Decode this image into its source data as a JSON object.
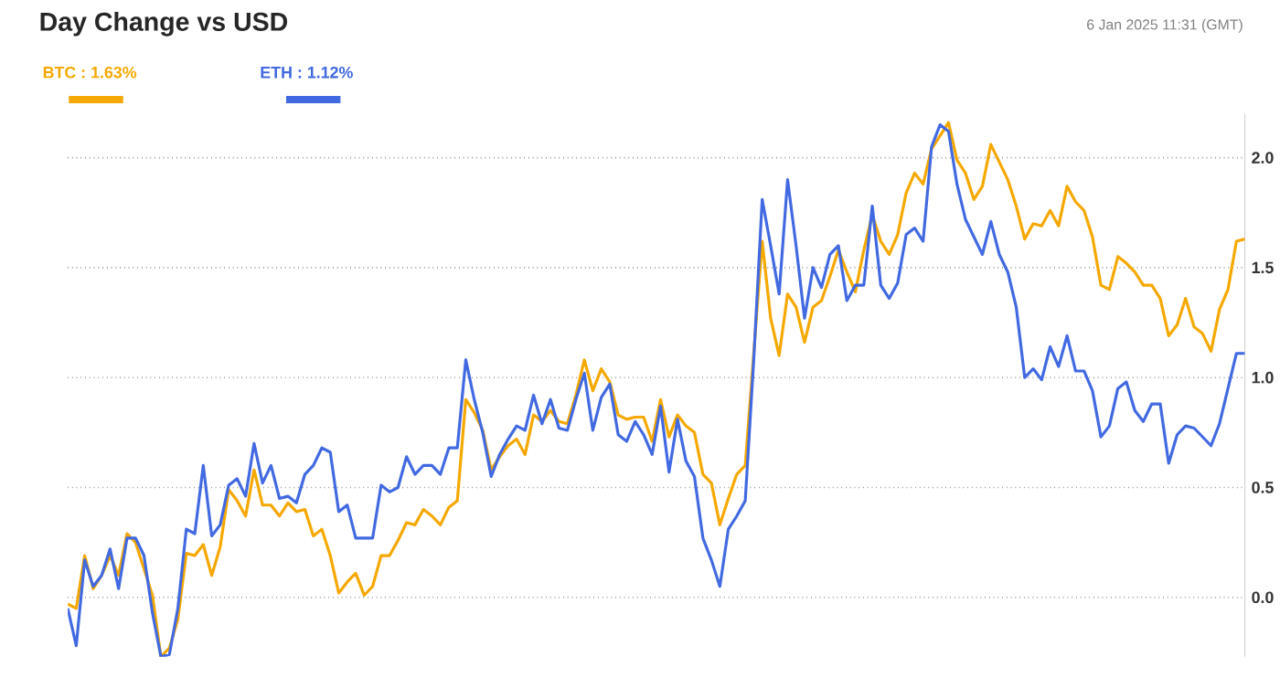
{
  "chart_data": {
    "type": "line",
    "title": "Day Change vs USD",
    "annotations": [
      "6 Jan 2025 11:31 (GMT)"
    ],
    "categories": [
      null,
      null,
      null,
      null,
      null,
      null,
      null,
      null,
      null,
      null,
      null,
      null,
      null,
      null,
      null,
      null,
      null,
      null,
      null,
      null,
      null,
      null,
      null,
      null,
      null,
      null,
      null,
      null,
      null,
      null,
      null,
      null,
      null,
      null,
      null,
      null,
      null,
      null,
      null,
      null,
      null,
      null,
      null,
      null,
      null,
      null,
      null,
      null,
      null,
      null,
      null,
      null,
      null,
      null,
      null,
      null,
      null,
      null,
      null,
      null,
      null,
      null,
      null,
      null,
      null,
      null,
      null,
      null,
      null,
      null,
      null,
      null,
      null,
      null,
      null,
      null,
      null,
      null,
      null,
      null,
      null,
      null,
      null,
      null,
      null,
      null,
      null,
      null,
      null,
      null,
      null,
      null,
      null,
      null,
      null,
      null,
      null,
      null,
      null,
      null,
      null,
      null,
      null,
      null,
      null,
      null,
      null,
      null,
      null,
      null,
      null,
      null,
      null,
      null,
      null,
      null,
      null,
      null,
      null,
      null,
      null,
      null,
      null,
      null,
      null,
      null,
      null,
      null,
      null,
      null,
      null,
      null,
      null,
      null,
      null,
      null,
      null,
      null,
      null,
      null
    ],
    "ylim": [
      -0.27,
      2.2
    ],
    "yticks": [
      {
        "value": 0,
        "label": "0.0"
      },
      {
        "value": 0.5,
        "label": "0.5"
      },
      {
        "value": 1,
        "label": "1.0"
      },
      {
        "value": 1.5,
        "label": "1.5"
      },
      {
        "value": 2,
        "label": "2.0"
      }
    ],
    "grid": "y",
    "legend": "top left",
    "marker": "none",
    "line_style": "solid",
    "series": [
      {
        "name": "BTC : 1.63%",
        "color": "#f5a800",
        "values": [
          -0.03,
          -0.05,
          0.19,
          0.04,
          0.1,
          0.19,
          0.1,
          0.29,
          0.25,
          0.13,
          0.01,
          -0.27,
          -0.23,
          -0.1,
          0.2,
          0.19,
          0.24,
          0.1,
          0.23,
          0.49,
          0.44,
          0.37,
          0.58,
          0.42,
          0.42,
          0.37,
          0.43,
          0.39,
          0.4,
          0.28,
          0.31,
          0.19,
          0.02,
          0.07,
          0.11,
          0.01,
          0.05,
          0.19,
          0.19,
          0.26,
          0.34,
          0.33,
          0.4,
          0.37,
          0.33,
          0.41,
          0.44,
          0.9,
          0.84,
          0.76,
          0.58,
          0.64,
          0.69,
          0.72,
          0.65,
          0.83,
          0.8,
          0.85,
          0.8,
          0.79,
          0.92,
          1.08,
          0.94,
          1.04,
          0.98,
          0.83,
          0.81,
          0.82,
          0.82,
          0.71,
          0.9,
          0.73,
          0.83,
          0.78,
          0.75,
          0.56,
          0.52,
          0.33,
          0.45,
          0.56,
          0.6,
          1.11,
          1.62,
          1.27,
          1.1,
          1.38,
          1.32,
          1.16,
          1.32,
          1.35,
          1.46,
          1.58,
          1.48,
          1.39,
          1.58,
          1.74,
          1.62,
          1.56,
          1.65,
          1.84,
          1.93,
          1.88,
          2.04,
          2.1,
          2.16,
          1.99,
          1.93,
          1.81,
          1.87,
          2.06,
          1.98,
          1.9,
          1.78,
          1.63,
          1.7,
          1.69,
          1.76,
          1.69,
          1.87,
          1.8,
          1.76,
          1.64,
          1.42,
          1.4,
          1.55,
          1.52,
          1.48,
          1.42,
          1.42,
          1.36,
          1.19,
          1.24,
          1.36,
          1.23,
          1.2,
          1.12,
          1.31,
          1.4,
          1.62,
          1.63
        ]
      },
      {
        "name": "ETH : 1.12%",
        "color": "#4169e1",
        "values": [
          -0.05,
          -0.22,
          0.17,
          0.05,
          0.1,
          0.22,
          0.04,
          0.27,
          0.27,
          0.19,
          -0.07,
          -0.27,
          -0.26,
          -0.05,
          0.31,
          0.29,
          0.6,
          0.28,
          0.33,
          0.51,
          0.54,
          0.46,
          0.7,
          0.52,
          0.6,
          0.45,
          0.46,
          0.43,
          0.56,
          0.6,
          0.68,
          0.66,
          0.39,
          0.42,
          0.27,
          0.27,
          0.27,
          0.51,
          0.48,
          0.5,
          0.64,
          0.56,
          0.6,
          0.6,
          0.56,
          0.68,
          0.68,
          1.08,
          0.9,
          0.75,
          0.55,
          0.65,
          0.72,
          0.78,
          0.76,
          0.92,
          0.79,
          0.9,
          0.77,
          0.76,
          0.9,
          1.02,
          0.76,
          0.91,
          0.97,
          0.74,
          0.71,
          0.8,
          0.74,
          0.65,
          0.87,
          0.57,
          0.81,
          0.62,
          0.55,
          0.27,
          0.17,
          0.05,
          0.31,
          0.37,
          0.44,
          1.08,
          1.81,
          1.6,
          1.38,
          1.9,
          1.6,
          1.27,
          1.5,
          1.41,
          1.56,
          1.6,
          1.35,
          1.42,
          1.42,
          1.78,
          1.42,
          1.36,
          1.43,
          1.65,
          1.68,
          1.62,
          2.05,
          2.15,
          2.12,
          1.88,
          1.72,
          1.64,
          1.56,
          1.71,
          1.56,
          1.48,
          1.32,
          1.0,
          1.04,
          0.99,
          1.14,
          1.05,
          1.19,
          1.03,
          1.03,
          0.94,
          0.73,
          0.78,
          0.95,
          0.98,
          0.85,
          0.8,
          0.88,
          0.88,
          0.61,
          0.74,
          0.78,
          0.77,
          0.73,
          0.69,
          0.79,
          0.95,
          1.11,
          1.11
        ]
      }
    ]
  }
}
